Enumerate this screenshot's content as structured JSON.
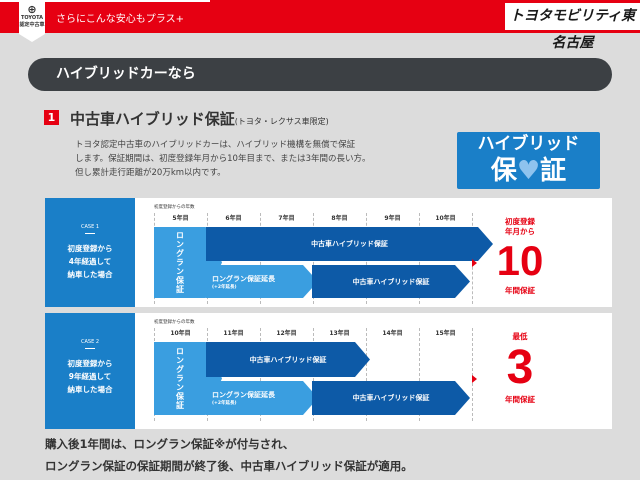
{
  "header": {
    "logo_text": "TOYOTA",
    "logo_sub": "認定中古車",
    "tagline": "さらにこんな安心もプラス+",
    "brand": "トヨタモビリティ東名古屋"
  },
  "section_pill": "ハイブリッドカーなら",
  "section": {
    "number": "1",
    "title": "中古車ハイブリッド保証",
    "title_note": "(トヨタ・レクサス車限定)",
    "desc": [
      "トヨタ認定中古車のハイブリッドカーは、ハイブリッド機構を無償で保証",
      "します。保証期間は、初度登録年月から10年目まで、または3年間の長い方。",
      "但し累計走行距離が20万km以内です。"
    ]
  },
  "badge": {
    "line1": "ハイブリッド",
    "line2a": "保",
    "heart": "♥",
    "line2b": "証"
  },
  "cases": [
    {
      "case_label": "CASE 1",
      "desc": [
        "初度登録から",
        "4年経過して",
        "納車した場合"
      ],
      "header": "初度登録からの年数",
      "years": [
        "5年目",
        "6年目",
        "7年目",
        "8年目",
        "9年目",
        "10年目"
      ],
      "longrun": "ロングラン保証",
      "hybrid_top": "中古車ハイブリッド保証",
      "ext": "ロングラン保証延長",
      "ext_note": "(+2年延長)",
      "hybrid_bottom": "中古車ハイブリッド保証",
      "result_top": [
        "初度登録",
        "年月から"
      ],
      "result_num": "10",
      "result_bottom": "年間保証"
    },
    {
      "case_label": "CASE 2",
      "desc": [
        "初度登録から",
        "9年経過して",
        "納車した場合"
      ],
      "header": "初度登録からの年数",
      "years": [
        "10年目",
        "11年目",
        "12年目",
        "13年目",
        "14年目",
        "15年目"
      ],
      "longrun": "ロングラン保証",
      "hybrid_top": "中古車ハイブリッド保証",
      "ext": "ロングラン保証延長",
      "ext_note": "(+2年延長)",
      "hybrid_bottom": "中古車ハイブリッド保証",
      "result_top": [
        "最低"
      ],
      "result_num": "3",
      "result_bottom": "年間保証"
    }
  ],
  "footer": [
    "購入後1年間は、ロングラン保証※が付与され、",
    "ロングラン保証の保証期間が終了後、中古車ハイブリッド保証が適用。"
  ],
  "colors": {
    "red": "#e60012",
    "blue": "#1a7fc8",
    "dark_blue": "#0d5aa7",
    "light_blue": "#3a9ee0"
  }
}
